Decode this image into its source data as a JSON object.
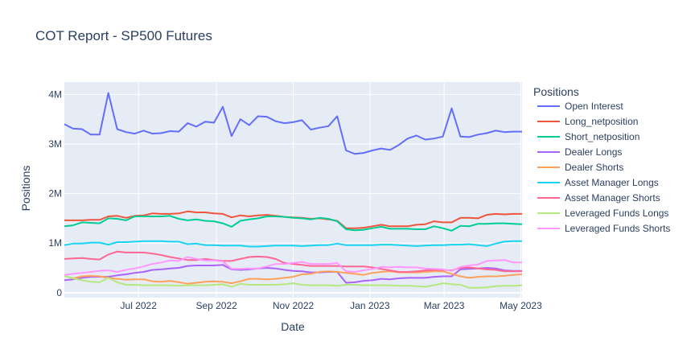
{
  "chart_data": {
    "type": "line",
    "title": "COT Report - SP500 Futures",
    "xlabel": "Date",
    "ylabel": "Positions",
    "xlim": [
      "2022-05-03",
      "2023-05-02"
    ],
    "ylim": [
      -100000,
      4250000
    ],
    "x_ticks": [
      {
        "date": "2022-07-01",
        "label": "Jul 2022"
      },
      {
        "date": "2022-09-01",
        "label": "Sep 2022"
      },
      {
        "date": "2022-11-01",
        "label": "Nov 2022"
      },
      {
        "date": "2023-01-01",
        "label": "Jan 2023"
      },
      {
        "date": "2023-03-01",
        "label": "Mar 2023"
      },
      {
        "date": "2023-05-01",
        "label": "May 2023"
      }
    ],
    "y_ticks": [
      {
        "value": 0,
        "label": "0"
      },
      {
        "value": 1000000,
        "label": "1M"
      },
      {
        "value": 2000000,
        "label": "2M"
      },
      {
        "value": 3000000,
        "label": "3M"
      },
      {
        "value": 4000000,
        "label": "4M"
      }
    ],
    "grid": true,
    "legend_title": "Positions",
    "legend_position": "right",
    "x": [
      "2022-05-03",
      "2022-05-10",
      "2022-05-17",
      "2022-05-24",
      "2022-05-31",
      "2022-06-07",
      "2022-06-14",
      "2022-06-21",
      "2022-06-28",
      "2022-07-05",
      "2022-07-12",
      "2022-07-19",
      "2022-07-26",
      "2022-08-02",
      "2022-08-09",
      "2022-08-16",
      "2022-08-23",
      "2022-08-30",
      "2022-09-06",
      "2022-09-13",
      "2022-09-20",
      "2022-09-27",
      "2022-10-04",
      "2022-10-11",
      "2022-10-18",
      "2022-10-25",
      "2022-11-01",
      "2022-11-08",
      "2022-11-15",
      "2022-11-22",
      "2022-11-29",
      "2022-12-06",
      "2022-12-13",
      "2022-12-20",
      "2022-12-27",
      "2023-01-03",
      "2023-01-10",
      "2023-01-17",
      "2023-01-24",
      "2023-01-31",
      "2023-02-07",
      "2023-02-14",
      "2023-02-21",
      "2023-02-28",
      "2023-03-07",
      "2023-03-14",
      "2023-03-21",
      "2023-03-28",
      "2023-04-04",
      "2023-04-11",
      "2023-04-18",
      "2023-04-25",
      "2023-05-02"
    ],
    "series": [
      {
        "name": "Open Interest",
        "color": "#636efa",
        "values": [
          3400000,
          3310000,
          3300000,
          3190000,
          3190000,
          4030000,
          3300000,
          3240000,
          3210000,
          3270000,
          3210000,
          3220000,
          3260000,
          3250000,
          3420000,
          3350000,
          3450000,
          3430000,
          3750000,
          3160000,
          3500000,
          3380000,
          3560000,
          3550000,
          3460000,
          3420000,
          3440000,
          3480000,
          3290000,
          3330000,
          3360000,
          3560000,
          2870000,
          2800000,
          2820000,
          2870000,
          2910000,
          2880000,
          2980000,
          3110000,
          3170000,
          3090000,
          3110000,
          3150000,
          3720000,
          3150000,
          3140000,
          3190000,
          3220000,
          3270000,
          3240000,
          3250000,
          3250000
        ]
      },
      {
        "name": "Long_netposition",
        "color": "#ef553b",
        "values": [
          1460000,
          1460000,
          1460000,
          1470000,
          1470000,
          1540000,
          1550000,
          1510000,
          1550000,
          1560000,
          1600000,
          1590000,
          1590000,
          1600000,
          1640000,
          1620000,
          1620000,
          1600000,
          1590000,
          1520000,
          1560000,
          1540000,
          1560000,
          1570000,
          1550000,
          1530000,
          1520000,
          1510000,
          1490000,
          1500000,
          1480000,
          1450000,
          1300000,
          1300000,
          1310000,
          1340000,
          1370000,
          1340000,
          1340000,
          1340000,
          1370000,
          1380000,
          1440000,
          1420000,
          1420000,
          1510000,
          1510000,
          1500000,
          1570000,
          1590000,
          1580000,
          1590000,
          1590000
        ]
      },
      {
        "name": "Short_netposition",
        "color": "#00cc96",
        "values": [
          1340000,
          1360000,
          1420000,
          1410000,
          1400000,
          1500000,
          1490000,
          1460000,
          1540000,
          1540000,
          1540000,
          1540000,
          1550000,
          1490000,
          1460000,
          1480000,
          1450000,
          1440000,
          1400000,
          1330000,
          1450000,
          1480000,
          1500000,
          1540000,
          1540000,
          1530000,
          1510000,
          1500000,
          1480000,
          1510000,
          1490000,
          1440000,
          1280000,
          1260000,
          1270000,
          1300000,
          1330000,
          1290000,
          1290000,
          1290000,
          1280000,
          1280000,
          1340000,
          1300000,
          1250000,
          1350000,
          1340000,
          1390000,
          1390000,
          1400000,
          1400000,
          1390000,
          1380000
        ]
      },
      {
        "name": "Dealer Longs",
        "color": "#ab63fa",
        "values": [
          250000,
          270000,
          300000,
          320000,
          320000,
          320000,
          350000,
          370000,
          400000,
          420000,
          460000,
          470000,
          490000,
          500000,
          540000,
          550000,
          550000,
          550000,
          560000,
          470000,
          460000,
          470000,
          490000,
          500000,
          490000,
          460000,
          440000,
          430000,
          410000,
          410000,
          420000,
          420000,
          200000,
          210000,
          240000,
          250000,
          280000,
          270000,
          290000,
          300000,
          300000,
          300000,
          320000,
          330000,
          330000,
          470000,
          480000,
          490000,
          500000,
          490000,
          450000,
          440000,
          440000
        ]
      },
      {
        "name": "Dealer Shorts",
        "color": "#ffa15a",
        "values": [
          340000,
          290000,
          330000,
          340000,
          330000,
          300000,
          280000,
          260000,
          270000,
          270000,
          230000,
          220000,
          240000,
          210000,
          180000,
          200000,
          220000,
          230000,
          220000,
          190000,
          230000,
          280000,
          280000,
          270000,
          280000,
          300000,
          320000,
          370000,
          380000,
          420000,
          430000,
          420000,
          400000,
          380000,
          360000,
          400000,
          420000,
          430000,
          410000,
          410000,
          410000,
          420000,
          430000,
          430000,
          380000,
          330000,
          300000,
          320000,
          330000,
          330000,
          340000,
          360000,
          370000
        ]
      },
      {
        "name": "Asset Manager Longs",
        "color": "#19d3f3",
        "values": [
          960000,
          990000,
          990000,
          1010000,
          1010000,
          970000,
          1020000,
          1020000,
          1030000,
          1040000,
          1040000,
          1040000,
          1030000,
          1030000,
          980000,
          990000,
          960000,
          960000,
          950000,
          950000,
          950000,
          930000,
          930000,
          940000,
          950000,
          950000,
          950000,
          940000,
          950000,
          960000,
          960000,
          990000,
          960000,
          960000,
          960000,
          960000,
          970000,
          970000,
          960000,
          950000,
          940000,
          950000,
          960000,
          960000,
          970000,
          970000,
          980000,
          960000,
          940000,
          990000,
          1030000,
          1040000,
          1040000
        ]
      },
      {
        "name": "Asset Manager Shorts",
        "color": "#ff6692",
        "values": [
          680000,
          690000,
          700000,
          680000,
          670000,
          770000,
          830000,
          810000,
          810000,
          810000,
          790000,
          760000,
          720000,
          690000,
          660000,
          660000,
          680000,
          660000,
          640000,
          640000,
          680000,
          720000,
          730000,
          720000,
          680000,
          600000,
          580000,
          560000,
          540000,
          540000,
          540000,
          540000,
          530000,
          530000,
          530000,
          510000,
          480000,
          450000,
          420000,
          420000,
          430000,
          450000,
          460000,
          460000,
          450000,
          500000,
          510000,
          490000,
          470000,
          460000,
          430000,
          430000,
          430000
        ]
      },
      {
        "name": "Leveraged Funds Longs",
        "color": "#b6e880",
        "values": [
          340000,
          290000,
          250000,
          220000,
          210000,
          300000,
          210000,
          160000,
          160000,
          150000,
          150000,
          150000,
          150000,
          140000,
          150000,
          150000,
          150000,
          160000,
          170000,
          120000,
          180000,
          160000,
          160000,
          160000,
          160000,
          170000,
          190000,
          160000,
          150000,
          150000,
          150000,
          140000,
          160000,
          160000,
          150000,
          150000,
          150000,
          150000,
          140000,
          140000,
          130000,
          120000,
          150000,
          190000,
          170000,
          160000,
          100000,
          100000,
          110000,
          130000,
          140000,
          140000,
          150000
        ]
      },
      {
        "name": "Leveraged Funds Shorts",
        "color": "#ff97ff",
        "values": [
          360000,
          380000,
          400000,
          420000,
          440000,
          450000,
          420000,
          460000,
          490000,
          530000,
          580000,
          610000,
          650000,
          640000,
          720000,
          680000,
          650000,
          650000,
          630000,
          480000,
          480000,
          490000,
          490000,
          530000,
          580000,
          580000,
          600000,
          620000,
          580000,
          580000,
          580000,
          600000,
          430000,
          420000,
          450000,
          480000,
          520000,
          510000,
          520000,
          510000,
          510000,
          490000,
          480000,
          470000,
          440000,
          520000,
          550000,
          570000,
          640000,
          650000,
          660000,
          610000,
          610000
        ]
      }
    ]
  }
}
